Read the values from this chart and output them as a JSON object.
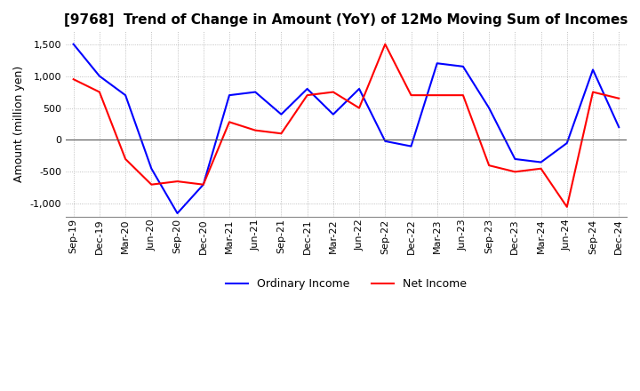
{
  "title": "[9768]  Trend of Change in Amount (YoY) of 12Mo Moving Sum of Incomes",
  "ylabel": "Amount (million yen)",
  "ylim": [
    -1200,
    1700
  ],
  "yticks": [
    -1000,
    -500,
    0,
    500,
    1000,
    1500
  ],
  "x_labels": [
    "Sep-19",
    "Dec-19",
    "Mar-20",
    "Jun-20",
    "Sep-20",
    "Dec-20",
    "Mar-21",
    "Jun-21",
    "Sep-21",
    "Dec-21",
    "Mar-22",
    "Jun-22",
    "Sep-22",
    "Dec-22",
    "Mar-23",
    "Jun-23",
    "Sep-23",
    "Dec-23",
    "Mar-24",
    "Jun-24",
    "Sep-24",
    "Dec-24"
  ],
  "ordinary_income": [
    1500,
    1000,
    700,
    -450,
    -1150,
    -700,
    700,
    750,
    400,
    800,
    400,
    800,
    -20,
    -100,
    1200,
    1150,
    500,
    -300,
    -350,
    -50,
    1100,
    200
  ],
  "net_income": [
    950,
    750,
    -300,
    -700,
    -650,
    -700,
    280,
    150,
    100,
    700,
    750,
    500,
    1500,
    700,
    700,
    700,
    -400,
    -500,
    -450,
    -1050,
    750,
    650
  ],
  "ordinary_color": "#0000ff",
  "net_color": "#ff0000",
  "grid_color": "#b0b0b0",
  "grid_style": "dotted",
  "background_color": "#ffffff",
  "title_fontsize": 11,
  "label_fontsize": 9,
  "tick_fontsize": 8,
  "legend_fontsize": 9
}
